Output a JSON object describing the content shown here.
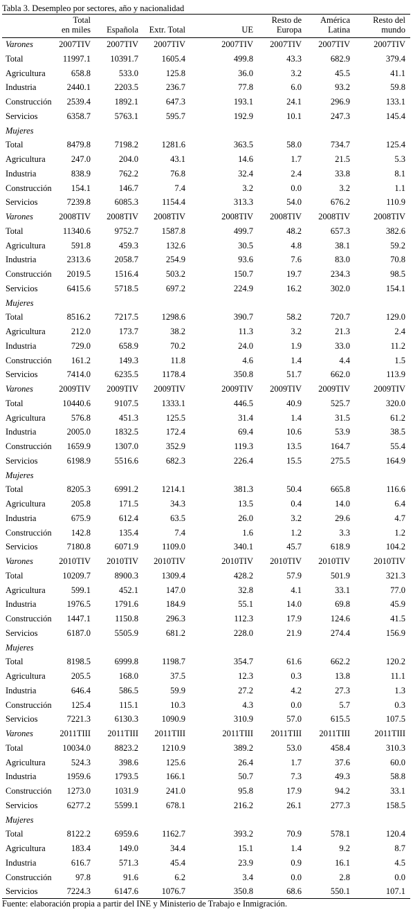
{
  "title": "Tabla 3. Desempleo por sectores, año y nacionalidad",
  "header": {
    "columns": [
      [
        "Total",
        "en miles"
      ],
      [
        "Española"
      ],
      [
        "Extr. Total"
      ],
      [
        "UE"
      ],
      [
        "Resto de",
        "Europa"
      ],
      [
        "América",
        "Latina"
      ],
      [
        "Resto del",
        "mundo"
      ]
    ]
  },
  "blocks": [
    {
      "men_label": "Varones",
      "period": [
        "2007TIV",
        "2007TIV",
        "2007TIV",
        "2007TIV",
        "2007TIV",
        "2007TIV",
        "2007TIV"
      ],
      "men_rows": [
        {
          "label": "Total",
          "values": [
            "11997.1",
            "10391.7",
            "1605.4",
            "499.8",
            "43.3",
            "682.9",
            "379.4"
          ]
        },
        {
          "label": "Agricultura",
          "values": [
            "658.8",
            "533.0",
            "125.8",
            "36.0",
            "3.2",
            "45.5",
            "41.1"
          ]
        },
        {
          "label": "Industria",
          "values": [
            "2440.1",
            "2203.5",
            "236.7",
            "77.8",
            "6.0",
            "93.2",
            "59.8"
          ]
        },
        {
          "label": "Construcción",
          "values": [
            "2539.4",
            "1892.1",
            "647.3",
            "193.1",
            "24.1",
            "296.9",
            "133.1"
          ]
        },
        {
          "label": "Servicios",
          "values": [
            "6358.7",
            "5763.1",
            "595.7",
            "192.9",
            "10.1",
            "247.3",
            "145.4"
          ]
        }
      ],
      "women_label": "Mujeres",
      "women_rows": [
        {
          "label": "Total",
          "values": [
            "8479.8",
            "7198.2",
            "1281.6",
            "363.5",
            "58.0",
            "734.7",
            "125.4"
          ]
        },
        {
          "label": "Agricultura",
          "values": [
            "247.0",
            "204.0",
            "43.1",
            "14.6",
            "1.7",
            "21.5",
            "5.3"
          ]
        },
        {
          "label": "Industria",
          "values": [
            "838.9",
            "762.2",
            "76.8",
            "32.4",
            "2.4",
            "33.8",
            "8.1"
          ]
        },
        {
          "label": "Construcción",
          "values": [
            "154.1",
            "146.7",
            "7.4",
            "3.2",
            "0.0",
            "3.2",
            "1.1"
          ]
        },
        {
          "label": "Servicios",
          "values": [
            "7239.8",
            "6085.3",
            "1154.4",
            "313.3",
            "54.0",
            "676.2",
            "110.9"
          ]
        }
      ]
    },
    {
      "men_label": "Varones",
      "period": [
        "2008TIV",
        "2008TIV",
        "2008TIV",
        "2008TIV",
        "2008TIV",
        "2008TIV",
        "2008TIV"
      ],
      "men_rows": [
        {
          "label": "Total",
          "values": [
            "11340.6",
            "9752.7",
            "1587.8",
            "499.7",
            "48.2",
            "657.3",
            "382.6"
          ]
        },
        {
          "label": "Agricultura",
          "values": [
            "591.8",
            "459.3",
            "132.6",
            "30.5",
            "4.8",
            "38.1",
            "59.2"
          ]
        },
        {
          "label": "Industria",
          "values": [
            "2313.6",
            "2058.7",
            "254.9",
            "93.6",
            "7.6",
            "83.0",
            "70.8"
          ]
        },
        {
          "label": "Construcción",
          "values": [
            "2019.5",
            "1516.4",
            "503.2",
            "150.7",
            "19.7",
            "234.3",
            "98.5"
          ]
        },
        {
          "label": "Servicios",
          "values": [
            "6415.6",
            "5718.5",
            "697.2",
            "224.9",
            "16.2",
            "302.0",
            "154.1"
          ]
        }
      ],
      "women_label": "Mujeres",
      "women_rows": [
        {
          "label": "Total",
          "values": [
            "8516.2",
            "7217.5",
            "1298.6",
            "390.7",
            "58.2",
            "720.7",
            "129.0"
          ]
        },
        {
          "label": "Agricultura",
          "values": [
            "212.0",
            "173.7",
            "38.2",
            "11.3",
            "3.2",
            "21.3",
            "2.4"
          ]
        },
        {
          "label": "Industria",
          "values": [
            "729.0",
            "658.9",
            "70.2",
            "24.0",
            "1.9",
            "33.0",
            "11.2"
          ]
        },
        {
          "label": "Construcción",
          "values": [
            "161.2",
            "149.3",
            "11.8",
            "4.6",
            "1.4",
            "4.4",
            "1.5"
          ]
        },
        {
          "label": "Servicios",
          "values": [
            "7414.0",
            "6235.5",
            "1178.4",
            "350.8",
            "51.7",
            "662.0",
            "113.9"
          ]
        }
      ]
    },
    {
      "men_label": "Varones",
      "period": [
        "2009TIV",
        "2009TIV",
        "2009TIV",
        "2009TIV",
        "2009TIV",
        "2009TIV",
        "2009TIV"
      ],
      "men_rows": [
        {
          "label": "Total",
          "values": [
            "10440.6",
            "9107.5",
            "1333.1",
            "446.5",
            "40.9",
            "525.7",
            "320.0"
          ]
        },
        {
          "label": "Agricultura",
          "values": [
            "576.8",
            "451.3",
            "125.5",
            "31.4",
            "1.4",
            "31.5",
            "61.2"
          ]
        },
        {
          "label": "Industria",
          "values": [
            "2005.0",
            "1832.5",
            "172.4",
            "69.4",
            "10.6",
            "53.9",
            "38.5"
          ]
        },
        {
          "label": "Construcción",
          "values": [
            "1659.9",
            "1307.0",
            "352.9",
            "119.3",
            "13.5",
            "164.7",
            "55.4"
          ]
        },
        {
          "label": "Servicios",
          "values": [
            "6198.9",
            "5516.6",
            "682.3",
            "226.4",
            "15.5",
            "275.5",
            "164.9"
          ]
        }
      ],
      "women_label": "Mujeres",
      "women_rows": [
        {
          "label": "Total",
          "values": [
            "8205.3",
            "6991.2",
            "1214.1",
            "381.3",
            "50.4",
            "665.8",
            "116.6"
          ]
        },
        {
          "label": "Agricultura",
          "values": [
            "205.8",
            "171.5",
            "34.3",
            "13.5",
            "0.4",
            "14.0",
            "6.4"
          ]
        },
        {
          "label": "Industria",
          "values": [
            "675.9",
            "612.4",
            "63.5",
            "26.0",
            "3.2",
            "29.6",
            "4.7"
          ]
        },
        {
          "label": "Construcción",
          "values": [
            "142.8",
            "135.4",
            "7.4",
            "1.6",
            "1.2",
            "3.3",
            "1.2"
          ]
        },
        {
          "label": "Servicios",
          "values": [
            "7180.8",
            "6071.9",
            "1109.0",
            "340.1",
            "45.7",
            "618.9",
            "104.2"
          ]
        }
      ]
    },
    {
      "men_label": "Varones",
      "period": [
        "2010TIV",
        "2010TIV",
        "2010TIV",
        "2010TIV",
        "2010TIV",
        "2010TIV",
        "2010TIV"
      ],
      "men_rows": [
        {
          "label": "Total",
          "values": [
            "10209.7",
            "8900.3",
            "1309.4",
            "428.2",
            "57.9",
            "501.9",
            "321.3"
          ]
        },
        {
          "label": "Agricultura",
          "values": [
            "599.1",
            "452.1",
            "147.0",
            "32.8",
            "4.1",
            "33.1",
            "77.0"
          ]
        },
        {
          "label": "Industria",
          "values": [
            "1976.5",
            "1791.6",
            "184.9",
            "55.1",
            "14.0",
            "69.8",
            "45.9"
          ]
        },
        {
          "label": "Construcción",
          "values": [
            "1447.1",
            "1150.8",
            "296.3",
            "112.3",
            "17.9",
            "124.6",
            "41.5"
          ]
        },
        {
          "label": "Servicios",
          "values": [
            "6187.0",
            "5505.9",
            "681.2",
            "228.0",
            "21.9",
            "274.4",
            "156.9"
          ]
        }
      ],
      "women_label": "Mujeres",
      "women_rows": [
        {
          "label": "Total",
          "values": [
            "8198.5",
            "6999.8",
            "1198.7",
            "354.7",
            "61.6",
            "662.2",
            "120.2"
          ]
        },
        {
          "label": "Agricultura",
          "values": [
            "205.5",
            "168.0",
            "37.5",
            "12.3",
            "0.3",
            "13.8",
            "11.1"
          ]
        },
        {
          "label": "Industria",
          "values": [
            "646.4",
            "586.5",
            "59.9",
            "27.2",
            "4.2",
            "27.3",
            "1.3"
          ]
        },
        {
          "label": "Construcción",
          "values": [
            "125.4",
            "115.1",
            "10.3",
            "4.3",
            "0.0",
            "5.7",
            "0.3"
          ]
        },
        {
          "label": "Servicios",
          "values": [
            "7221.3",
            "6130.3",
            "1090.9",
            "310.9",
            "57.0",
            "615.5",
            "107.5"
          ]
        }
      ]
    },
    {
      "men_label": "Varones",
      "period": [
        "2011TIII",
        "2011TIII",
        "2011TIII",
        "2011TIII",
        "2011TIII",
        "2011TIII",
        "2011TIII"
      ],
      "men_rows": [
        {
          "label": "Total",
          "values": [
            "10034.0",
            "8823.2",
            "1210.9",
            "389.2",
            "53.0",
            "458.4",
            "310.3"
          ]
        },
        {
          "label": "Agricultura",
          "values": [
            "524.3",
            "398.6",
            "125.6",
            "26.4",
            "1.7",
            "37.6",
            "60.0"
          ]
        },
        {
          "label": "Industria",
          "values": [
            "1959.6",
            "1793.5",
            "166.1",
            "50.7",
            "7.3",
            "49.3",
            "58.8"
          ]
        },
        {
          "label": "Construcción",
          "values": [
            "1273.0",
            "1031.9",
            "241.0",
            "95.8",
            "17.9",
            "94.2",
            "33.1"
          ]
        },
        {
          "label": "Servicios",
          "values": [
            "6277.2",
            "5599.1",
            "678.1",
            "216.2",
            "26.1",
            "277.3",
            "158.5"
          ]
        }
      ],
      "women_label": "Mujeres",
      "women_rows": [
        {
          "label": "Total",
          "values": [
            "8122.2",
            "6959.6",
            "1162.7",
            "393.2",
            "70.9",
            "578.1",
            "120.4"
          ]
        },
        {
          "label": "Agricultura",
          "values": [
            "183.4",
            "149.0",
            "34.4",
            "15.1",
            "1.4",
            "9.2",
            "8.7"
          ]
        },
        {
          "label": "Industria",
          "values": [
            "616.7",
            "571.3",
            "45.4",
            "23.9",
            "0.9",
            "16.1",
            "4.5"
          ]
        },
        {
          "label": "Construcción",
          "values": [
            "97.8",
            "91.6",
            "6.2",
            "3.4",
            "0.0",
            "2.8",
            "0.0"
          ]
        },
        {
          "label": "Servicios",
          "values": [
            "7224.3",
            "6147.6",
            "1076.7",
            "350.8",
            "68.6",
            "550.1",
            "107.1"
          ]
        }
      ]
    }
  ],
  "footer": "Fuente: elaboración propia a partir del INE y Ministerio de Trabajo e Inmigración."
}
